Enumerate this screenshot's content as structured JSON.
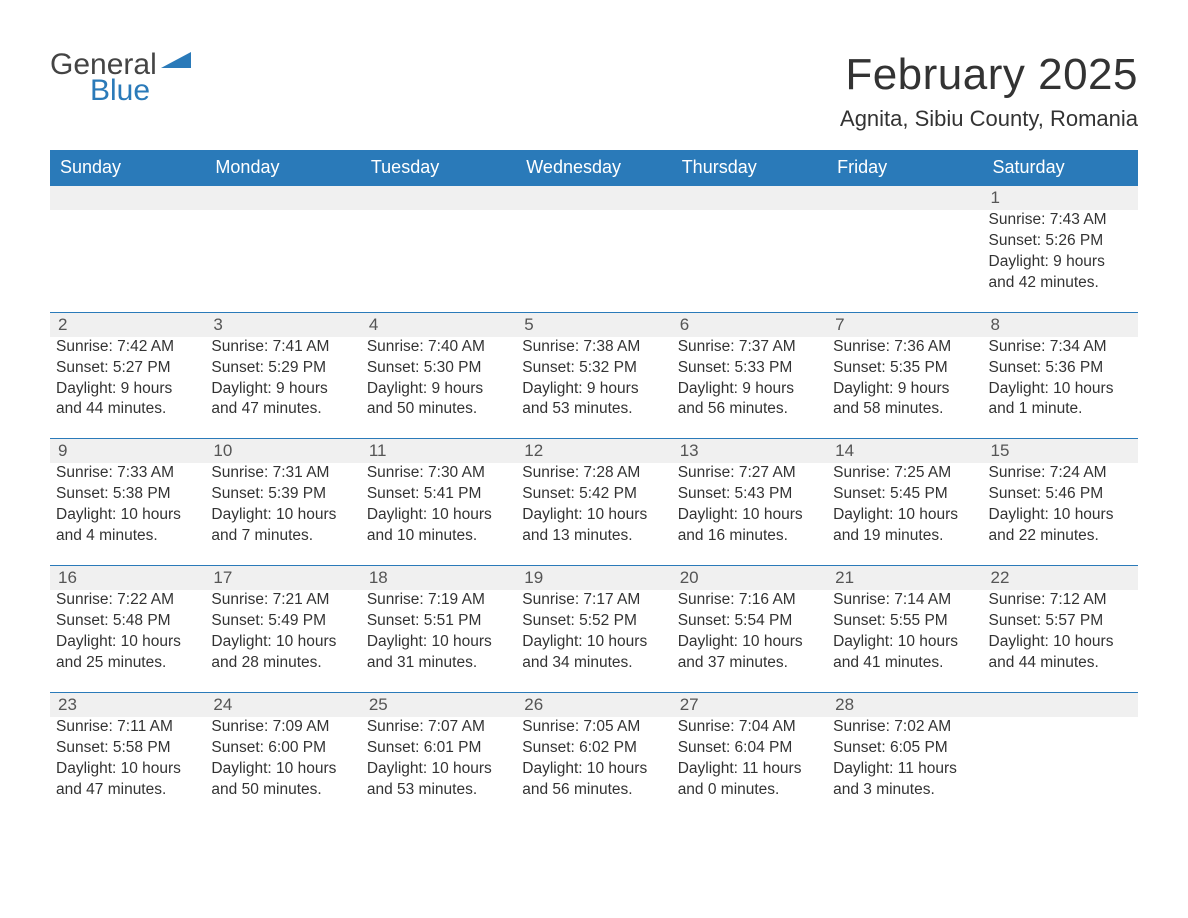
{
  "logo": {
    "word1": "General",
    "word2": "Blue"
  },
  "title": "February 2025",
  "location": "Agnita, Sibiu County, Romania",
  "colors": {
    "header_bg": "#2a7ab9",
    "header_text": "#ffffff",
    "daynum_bg": "#f0f0f0",
    "row_border": "#2a7ab9",
    "body_text": "#333333",
    "page_bg": "#ffffff",
    "logo_accent": "#2a7ab9",
    "logo_dark": "#444444"
  },
  "typography": {
    "title_fontsize": 44,
    "location_fontsize": 22,
    "dayhead_fontsize": 18,
    "cell_fontsize": 15.5,
    "daynum_fontsize": 17
  },
  "day_headers": [
    "Sunday",
    "Monday",
    "Tuesday",
    "Wednesday",
    "Thursday",
    "Friday",
    "Saturday"
  ],
  "weeks": [
    [
      null,
      null,
      null,
      null,
      null,
      null,
      {
        "num": "1",
        "sunrise": "Sunrise: 7:43 AM",
        "sunset": "Sunset: 5:26 PM",
        "daylight": "Daylight: 9 hours and 42 minutes."
      }
    ],
    [
      {
        "num": "2",
        "sunrise": "Sunrise: 7:42 AM",
        "sunset": "Sunset: 5:27 PM",
        "daylight": "Daylight: 9 hours and 44 minutes."
      },
      {
        "num": "3",
        "sunrise": "Sunrise: 7:41 AM",
        "sunset": "Sunset: 5:29 PM",
        "daylight": "Daylight: 9 hours and 47 minutes."
      },
      {
        "num": "4",
        "sunrise": "Sunrise: 7:40 AM",
        "sunset": "Sunset: 5:30 PM",
        "daylight": "Daylight: 9 hours and 50 minutes."
      },
      {
        "num": "5",
        "sunrise": "Sunrise: 7:38 AM",
        "sunset": "Sunset: 5:32 PM",
        "daylight": "Daylight: 9 hours and 53 minutes."
      },
      {
        "num": "6",
        "sunrise": "Sunrise: 7:37 AM",
        "sunset": "Sunset: 5:33 PM",
        "daylight": "Daylight: 9 hours and 56 minutes."
      },
      {
        "num": "7",
        "sunrise": "Sunrise: 7:36 AM",
        "sunset": "Sunset: 5:35 PM",
        "daylight": "Daylight: 9 hours and 58 minutes."
      },
      {
        "num": "8",
        "sunrise": "Sunrise: 7:34 AM",
        "sunset": "Sunset: 5:36 PM",
        "daylight": "Daylight: 10 hours and 1 minute."
      }
    ],
    [
      {
        "num": "9",
        "sunrise": "Sunrise: 7:33 AM",
        "sunset": "Sunset: 5:38 PM",
        "daylight": "Daylight: 10 hours and 4 minutes."
      },
      {
        "num": "10",
        "sunrise": "Sunrise: 7:31 AM",
        "sunset": "Sunset: 5:39 PM",
        "daylight": "Daylight: 10 hours and 7 minutes."
      },
      {
        "num": "11",
        "sunrise": "Sunrise: 7:30 AM",
        "sunset": "Sunset: 5:41 PM",
        "daylight": "Daylight: 10 hours and 10 minutes."
      },
      {
        "num": "12",
        "sunrise": "Sunrise: 7:28 AM",
        "sunset": "Sunset: 5:42 PM",
        "daylight": "Daylight: 10 hours and 13 minutes."
      },
      {
        "num": "13",
        "sunrise": "Sunrise: 7:27 AM",
        "sunset": "Sunset: 5:43 PM",
        "daylight": "Daylight: 10 hours and 16 minutes."
      },
      {
        "num": "14",
        "sunrise": "Sunrise: 7:25 AM",
        "sunset": "Sunset: 5:45 PM",
        "daylight": "Daylight: 10 hours and 19 minutes."
      },
      {
        "num": "15",
        "sunrise": "Sunrise: 7:24 AM",
        "sunset": "Sunset: 5:46 PM",
        "daylight": "Daylight: 10 hours and 22 minutes."
      }
    ],
    [
      {
        "num": "16",
        "sunrise": "Sunrise: 7:22 AM",
        "sunset": "Sunset: 5:48 PM",
        "daylight": "Daylight: 10 hours and 25 minutes."
      },
      {
        "num": "17",
        "sunrise": "Sunrise: 7:21 AM",
        "sunset": "Sunset: 5:49 PM",
        "daylight": "Daylight: 10 hours and 28 minutes."
      },
      {
        "num": "18",
        "sunrise": "Sunrise: 7:19 AM",
        "sunset": "Sunset: 5:51 PM",
        "daylight": "Daylight: 10 hours and 31 minutes."
      },
      {
        "num": "19",
        "sunrise": "Sunrise: 7:17 AM",
        "sunset": "Sunset: 5:52 PM",
        "daylight": "Daylight: 10 hours and 34 minutes."
      },
      {
        "num": "20",
        "sunrise": "Sunrise: 7:16 AM",
        "sunset": "Sunset: 5:54 PM",
        "daylight": "Daylight: 10 hours and 37 minutes."
      },
      {
        "num": "21",
        "sunrise": "Sunrise: 7:14 AM",
        "sunset": "Sunset: 5:55 PM",
        "daylight": "Daylight: 10 hours and 41 minutes."
      },
      {
        "num": "22",
        "sunrise": "Sunrise: 7:12 AM",
        "sunset": "Sunset: 5:57 PM",
        "daylight": "Daylight: 10 hours and 44 minutes."
      }
    ],
    [
      {
        "num": "23",
        "sunrise": "Sunrise: 7:11 AM",
        "sunset": "Sunset: 5:58 PM",
        "daylight": "Daylight: 10 hours and 47 minutes."
      },
      {
        "num": "24",
        "sunrise": "Sunrise: 7:09 AM",
        "sunset": "Sunset: 6:00 PM",
        "daylight": "Daylight: 10 hours and 50 minutes."
      },
      {
        "num": "25",
        "sunrise": "Sunrise: 7:07 AM",
        "sunset": "Sunset: 6:01 PM",
        "daylight": "Daylight: 10 hours and 53 minutes."
      },
      {
        "num": "26",
        "sunrise": "Sunrise: 7:05 AM",
        "sunset": "Sunset: 6:02 PM",
        "daylight": "Daylight: 10 hours and 56 minutes."
      },
      {
        "num": "27",
        "sunrise": "Sunrise: 7:04 AM",
        "sunset": "Sunset: 6:04 PM",
        "daylight": "Daylight: 11 hours and 0 minutes."
      },
      {
        "num": "28",
        "sunrise": "Sunrise: 7:02 AM",
        "sunset": "Sunset: 6:05 PM",
        "daylight": "Daylight: 11 hours and 3 minutes."
      },
      null
    ]
  ]
}
